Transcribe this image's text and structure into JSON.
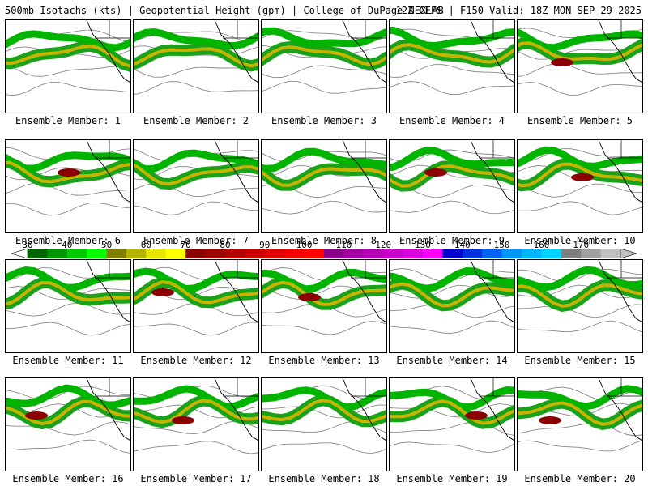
{
  "header": {
    "left": "500mb Isotachs (kts) | Geopotential Height (gpm) | College of DuPage NEXLAB",
    "right": "12Z GEFS | F150 Valid: 18Z MON SEP 29 2025"
  },
  "members": [
    {
      "label": "Ensemble Member: 1"
    },
    {
      "label": "Ensemble Member: 2"
    },
    {
      "label": "Ensemble Member: 3"
    },
    {
      "label": "Ensemble Member: 4"
    },
    {
      "label": "Ensemble Member: 5"
    },
    {
      "label": "Ensemble Member: 6"
    },
    {
      "label": "Ensemble Member: 7"
    },
    {
      "label": "Ensemble Member: 8"
    },
    {
      "label": "Ensemble Member: 9"
    },
    {
      "label": "Ensemble Member: 10"
    },
    {
      "label": "Ensemble Member: 11"
    },
    {
      "label": "Ensemble Member: 12"
    },
    {
      "label": "Ensemble Member: 13"
    },
    {
      "label": "Ensemble Member: 14"
    },
    {
      "label": "Ensemble Member: 15"
    },
    {
      "label": "Ensemble Member: 16"
    },
    {
      "label": "Ensemble Member: 17"
    },
    {
      "label": "Ensemble Member: 18"
    },
    {
      "label": "Ensemble Member: 19"
    },
    {
      "label": "Ensemble Member: 20"
    }
  ],
  "colorbar": {
    "labels": [
      "30",
      "40",
      "50",
      "60",
      "70",
      "80",
      "90",
      "100",
      "110",
      "120",
      "130",
      "140",
      "150",
      "160",
      "170"
    ],
    "colors": [
      "#006400",
      "#009600",
      "#00c800",
      "#00ff00",
      "#808000",
      "#b4b400",
      "#e6e600",
      "#ffff00",
      "#8b0000",
      "#a00000",
      "#b40000",
      "#c80000",
      "#dc0000",
      "#f00000",
      "#ff0000",
      "#8b008b",
      "#a000a0",
      "#b400b4",
      "#c800c8",
      "#dc00dc",
      "#ff00ff",
      "#0000c8",
      "#0032dc",
      "#0064f0",
      "#0096ff",
      "#00b4ff",
      "#00d2ff",
      "#808080",
      "#a0a0a0",
      "#c0c0c0"
    ]
  }
}
